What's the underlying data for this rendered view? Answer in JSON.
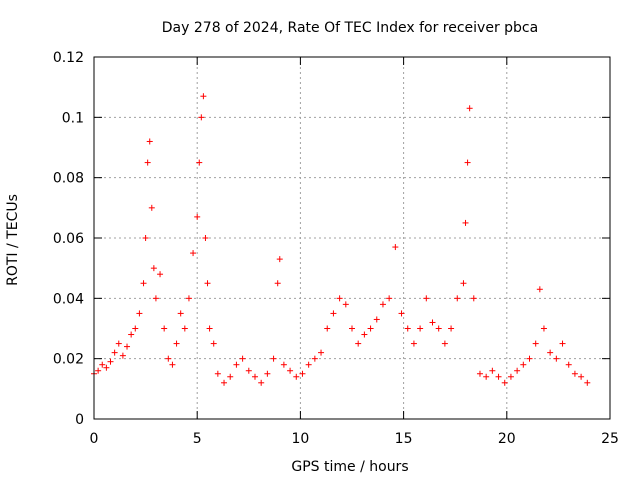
{
  "chart_data": {
    "type": "scatter",
    "title": "Day 278 of 2024, Rate Of TEC Index for receiver pbca",
    "xlabel": "GPS time / hours",
    "ylabel": "ROTI / TECUs",
    "xlim": [
      0,
      25
    ],
    "ylim": [
      0,
      0.12
    ],
    "xticks": [
      0,
      5,
      10,
      15,
      20,
      25
    ],
    "xtick_labels": [
      "0",
      "5",
      "10",
      "15",
      "20",
      "25"
    ],
    "yticks": [
      0,
      0.02,
      0.04,
      0.06,
      0.08,
      0.1,
      0.12
    ],
    "ytick_labels": [
      "0",
      "0.02",
      "0.04",
      "0.06",
      "0.08",
      "0.1",
      "0.12"
    ],
    "grid": true,
    "marker": "plus",
    "color": "#ff0000",
    "series": [
      {
        "x": [
          0.0,
          0.2,
          0.4,
          0.6,
          0.8,
          1.0,
          1.2,
          1.4,
          1.6,
          1.8,
          2.0,
          2.2,
          2.4,
          2.5,
          2.6,
          2.7,
          2.8,
          2.9,
          3.0,
          3.2,
          3.4,
          3.6,
          3.8,
          4.0,
          4.2,
          4.4,
          4.6,
          4.8,
          5.0,
          5.1,
          5.2,
          5.3,
          5.4,
          5.5,
          5.6,
          5.8,
          6.0,
          6.3,
          6.6,
          6.9,
          7.2,
          7.5,
          7.8,
          8.1,
          8.4,
          8.7,
          8.9,
          9.0,
          9.2,
          9.5,
          9.8,
          10.1,
          10.4,
          10.7,
          11.0,
          11.3,
          11.6,
          11.9,
          12.2,
          12.5,
          12.8,
          13.1,
          13.4,
          13.7,
          14.0,
          14.3,
          14.6,
          14.9,
          15.2,
          15.5,
          15.8,
          16.1,
          16.4,
          16.7,
          17.0,
          17.3,
          17.6,
          17.9,
          18.0,
          18.1,
          18.2,
          18.4,
          18.7,
          19.0,
          19.3,
          19.6,
          19.9,
          20.2,
          20.5,
          20.8,
          21.1,
          21.4,
          21.6,
          21.8,
          22.1,
          22.4,
          22.7,
          23.0,
          23.3,
          23.6,
          23.9
        ],
        "y": [
          0.015,
          0.016,
          0.018,
          0.017,
          0.019,
          0.022,
          0.025,
          0.021,
          0.024,
          0.028,
          0.03,
          0.035,
          0.045,
          0.06,
          0.085,
          0.092,
          0.07,
          0.05,
          0.04,
          0.048,
          0.03,
          0.02,
          0.018,
          0.025,
          0.035,
          0.03,
          0.04,
          0.055,
          0.067,
          0.085,
          0.1,
          0.107,
          0.06,
          0.045,
          0.03,
          0.025,
          0.015,
          0.012,
          0.014,
          0.018,
          0.02,
          0.016,
          0.014,
          0.012,
          0.015,
          0.02,
          0.045,
          0.053,
          0.018,
          0.016,
          0.014,
          0.015,
          0.018,
          0.02,
          0.022,
          0.03,
          0.035,
          0.04,
          0.038,
          0.03,
          0.025,
          0.028,
          0.03,
          0.033,
          0.038,
          0.04,
          0.057,
          0.035,
          0.03,
          0.025,
          0.03,
          0.04,
          0.032,
          0.03,
          0.025,
          0.03,
          0.04,
          0.045,
          0.065,
          0.085,
          0.103,
          0.04,
          0.015,
          0.014,
          0.016,
          0.014,
          0.012,
          0.014,
          0.016,
          0.018,
          0.02,
          0.025,
          0.043,
          0.03,
          0.022,
          0.02,
          0.025,
          0.018,
          0.015,
          0.014,
          0.012
        ]
      }
    ]
  }
}
